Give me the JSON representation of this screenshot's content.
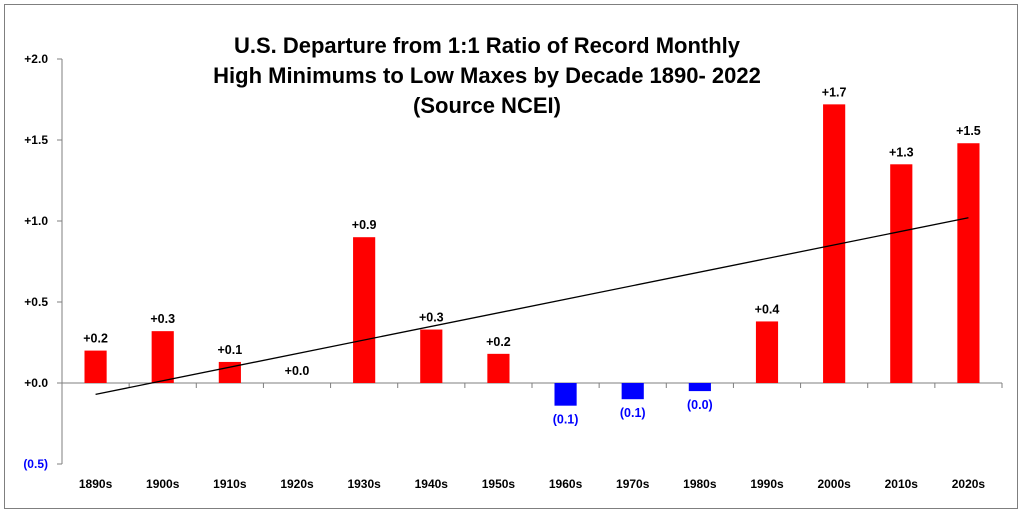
{
  "chart_data": {
    "type": "bar",
    "title": [
      "U.S. Departure from 1:1 Ratio of Record Monthly",
      "High Minimums to Low Maxes by Decade 1890- 2022",
      "(Source NCEI)"
    ],
    "xlabel": "",
    "ylabel": "",
    "categories": [
      "1890s",
      "1900s",
      "1910s",
      "1920s",
      "1930s",
      "1940s",
      "1950s",
      "1960s",
      "1970s",
      "1980s",
      "1990s",
      "2000s",
      "2010s",
      "2020s"
    ],
    "values": [
      0.2,
      0.32,
      0.13,
      0.0,
      0.9,
      0.33,
      0.18,
      -0.14,
      -0.1,
      -0.05,
      0.38,
      1.72,
      1.35,
      1.48
    ],
    "data_labels": [
      "+0.2",
      "+0.3",
      "+0.1",
      "+0.0",
      "+0.9",
      "+0.3",
      "+0.2",
      "(0.1)",
      "(0.1)",
      "(0.0)",
      "+0.4",
      "+1.7",
      "+1.3",
      "+1.5"
    ],
    "ylim": [
      -0.5,
      2.0
    ],
    "yticks": [
      2.0,
      1.5,
      1.0,
      0.5,
      0.0,
      -0.5
    ],
    "ytick_labels": [
      "+2.0",
      "+1.5",
      "+1.0",
      "+0.5",
      "+0.0",
      "(0.5)"
    ],
    "trendline": {
      "type": "linear",
      "start": -0.07,
      "end": 1.02
    },
    "grid": false,
    "legend": "none",
    "colors": {
      "positive": "#ff0000",
      "negative": "#0000ff",
      "trend": "#000000",
      "axis": "#7f7f7f"
    }
  }
}
